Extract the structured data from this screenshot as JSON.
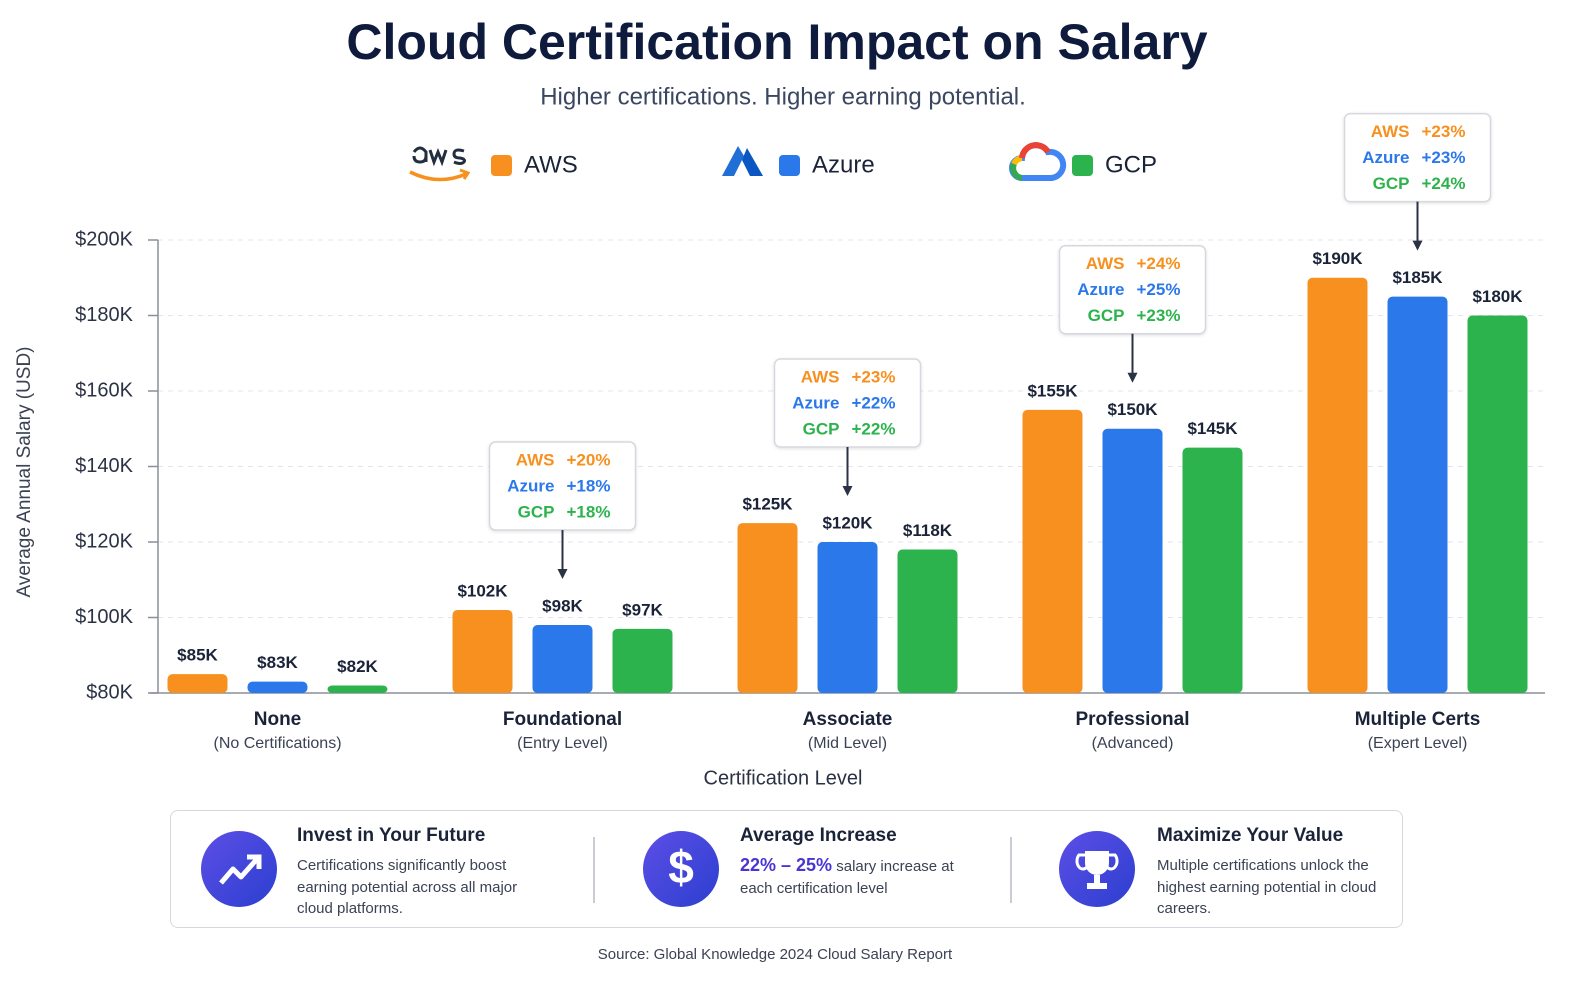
{
  "chart_data": {
    "type": "bar",
    "title": "Cloud Certification Impact on Salary",
    "subtitle": "Higher certifications. Higher earning potential.",
    "x_label": "Certification Level",
    "y_label": "Average Annual Salary (USD)",
    "categories": [
      "None",
      "Foundational",
      "Associate",
      "Professional",
      "Multiple Certs"
    ],
    "category_sublabels": [
      "(No Certifications)",
      "(Entry Level)",
      "(Mid Level)",
      "(Advanced)",
      "(Expert Level)"
    ],
    "series": [
      {
        "name": "AWS",
        "color": "#f7901e",
        "values": [
          85000,
          102000,
          125000,
          155000,
          190000
        ],
        "value_labels": [
          "$85K",
          "$102K",
          "$125K",
          "$155K",
          "$190K"
        ]
      },
      {
        "name": "Azure",
        "color": "#2a78ea",
        "values": [
          83000,
          98000,
          120000,
          150000,
          185000
        ],
        "value_labels": [
          "$83K",
          "$98K",
          "$120K",
          "$150K",
          "$185K"
        ]
      },
      {
        "name": "GCP",
        "color": "#2db34d",
        "values": [
          82000,
          97000,
          118000,
          145000,
          180000
        ],
        "value_labels": [
          "$82K",
          "$97K",
          "$118K",
          "$145K",
          "$180K"
        ]
      }
    ],
    "ylim": [
      80000,
      200000
    ],
    "yticks": [
      {
        "value": 80000,
        "label": "$80K"
      },
      {
        "value": 100000,
        "label": "$100K"
      },
      {
        "value": 120000,
        "label": "$120K"
      },
      {
        "value": 140000,
        "label": "$140K"
      },
      {
        "value": 160000,
        "label": "$160K"
      },
      {
        "value": 180000,
        "label": "$180K"
      },
      {
        "value": 200000,
        "label": "$200K"
      }
    ],
    "grid": true,
    "callouts": [
      null,
      {
        "rows": [
          {
            "name": "AWS",
            "change": "+20%"
          },
          {
            "name": "Azure",
            "change": "+18%"
          },
          {
            "name": "GCP",
            "change": "+18%"
          }
        ]
      },
      {
        "rows": [
          {
            "name": "AWS",
            "change": "+23%"
          },
          {
            "name": "Azure",
            "change": "+22%"
          },
          {
            "name": "GCP",
            "change": "+22%"
          }
        ]
      },
      {
        "rows": [
          {
            "name": "AWS",
            "change": "+24%"
          },
          {
            "name": "Azure",
            "change": "+25%"
          },
          {
            "name": "GCP",
            "change": "+23%"
          }
        ]
      },
      {
        "rows": [
          {
            "name": "AWS",
            "change": "+23%"
          },
          {
            "name": "Azure",
            "change": "+23%"
          },
          {
            "name": "GCP",
            "change": "+24%"
          }
        ]
      }
    ]
  },
  "info_cards": [
    {
      "title": "Invest in Your Future",
      "text": "Certifications significantly boost earning potential across all major cloud platforms."
    },
    {
      "title": "Average Increase",
      "highlight": "22% – 25%",
      "text": "salary increase at each certification level"
    },
    {
      "title": "Maximize Your Value",
      "text": "Multiple certifications unlock the highest earning potential in cloud careers."
    }
  ],
  "source": "Source: Global Knowledge 2024 Cloud Salary Report"
}
